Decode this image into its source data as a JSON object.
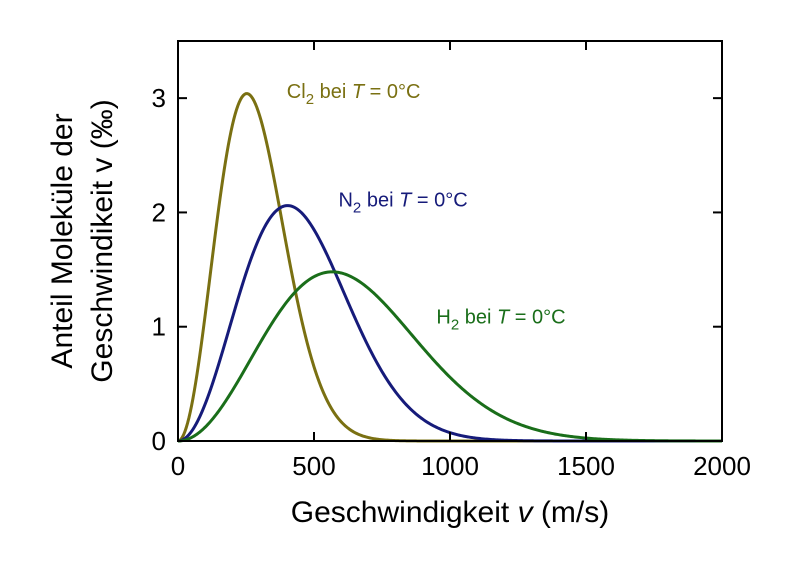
{
  "chart_data": {
    "type": "line",
    "title": "",
    "xlabel": "Geschwindigkeit v (m/s)",
    "ylabel_line1": "Anteil Moleküle der",
    "ylabel_line2": "Geschwindikeit v (‰)",
    "xlim": [
      0,
      2000
    ],
    "ylim": [
      0,
      3.5
    ],
    "xticks": [
      0,
      500,
      1000,
      1500,
      2000
    ],
    "xtick_labels": [
      "0",
      "500",
      "1000",
      "1500",
      "2000"
    ],
    "yticks": [
      0,
      1,
      2,
      3
    ],
    "ytick_labels": [
      "0",
      "1",
      "2",
      "3"
    ],
    "grid": false,
    "legend": "none",
    "temperature_c": 0,
    "series": [
      {
        "molecule": "Cl",
        "subscript": "2",
        "annotation": "bei",
        "T": "T",
        "eq": " = 0°C",
        "color": "#7a7012",
        "peak_v": 253,
        "peak_value": 3.04,
        "annotation_anchor": [
          400,
          3.0
        ]
      },
      {
        "molecule": "N",
        "subscript": "2",
        "annotation": "bei",
        "T": "T",
        "eq": " = 0°C",
        "color": "#161b7a",
        "peak_v": 403,
        "peak_value": 2.06,
        "annotation_anchor": [
          590,
          2.05
        ]
      },
      {
        "molecule": "H",
        "subscript": "2",
        "annotation": "bei",
        "T": "T",
        "eq": " = 0°C",
        "color": "#1a6e1a",
        "peak_v": 567,
        "peak_value": 1.48,
        "annotation_anchor": [
          950,
          1.03
        ]
      }
    ]
  }
}
